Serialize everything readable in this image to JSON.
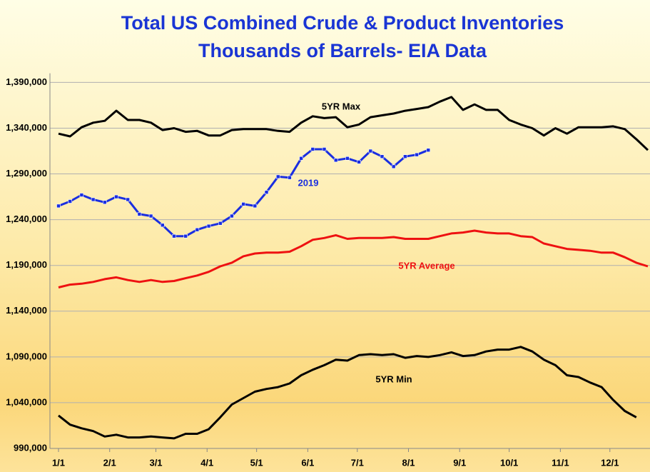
{
  "chart_data": {
    "type": "line",
    "title": [
      "Total US Combined Crude & Product Inventories",
      "Thousands of Barrels- EIA Data"
    ],
    "x": [
      1,
      8,
      15,
      22,
      29,
      36,
      43,
      50,
      57,
      64,
      71,
      78,
      85,
      92,
      99,
      106,
      113,
      120,
      127,
      134,
      141,
      148,
      155,
      162,
      169,
      176,
      183,
      190,
      197,
      204,
      211,
      218,
      225,
      232,
      239,
      246,
      253,
      260,
      267,
      274,
      281,
      288,
      295,
      302,
      309,
      316,
      323,
      330,
      337,
      344,
      351,
      358
    ],
    "xlim": [
      1,
      358
    ],
    "xticks": [
      {
        "value": 1,
        "label": "1/1"
      },
      {
        "value": 32,
        "label": "2/1"
      },
      {
        "value": 60,
        "label": "3/1"
      },
      {
        "value": 91,
        "label": "4/1"
      },
      {
        "value": 121,
        "label": "5/1"
      },
      {
        "value": 152,
        "label": "6/1"
      },
      {
        "value": 182,
        "label": "7/1"
      },
      {
        "value": 213,
        "label": "8/1"
      },
      {
        "value": 244,
        "label": "9/1"
      },
      {
        "value": 274,
        "label": "10/1"
      },
      {
        "value": 305,
        "label": "11/1"
      },
      {
        "value": 335,
        "label": "12/1"
      }
    ],
    "ylim": [
      990000,
      1400000
    ],
    "yticks": [
      {
        "value": 990000,
        "label": "990,000"
      },
      {
        "value": 1040000,
        "label": "1,040,000"
      },
      {
        "value": 1090000,
        "label": "1,090,000"
      },
      {
        "value": 1140000,
        "label": "1,140,000"
      },
      {
        "value": 1190000,
        "label": "1,190,000"
      },
      {
        "value": 1240000,
        "label": "1,240,000"
      },
      {
        "value": 1290000,
        "label": "1,290,000"
      },
      {
        "value": 1340000,
        "label": "1,340,000"
      },
      {
        "value": 1390000,
        "label": "1,390,000"
      }
    ],
    "grid": true,
    "series": [
      {
        "name": "5YR Max",
        "color": "#000000",
        "values": [
          1334000,
          1331000,
          1341000,
          1346000,
          1348000,
          1359000,
          1349000,
          1349000,
          1346000,
          1338000,
          1340000,
          1336000,
          1337000,
          1332000,
          1332000,
          1338000,
          1339000,
          1339000,
          1339000,
          1337000,
          1336000,
          1346000,
          1353000,
          1351000,
          1352000,
          1341000,
          1344000,
          1352000,
          1354000,
          1356000,
          1359000,
          1361000,
          1363000,
          1369000,
          1374000,
          1360000,
          1366000,
          1360000,
          1360000,
          1349000,
          1344000,
          1340000,
          1332000,
          1340000,
          1334000,
          1341000,
          1341000,
          1341000,
          1342000,
          1339000,
          1328000,
          1316000
        ]
      },
      {
        "name": "2019",
        "color": "#1a2ee0",
        "markers": true,
        "values": [
          1255000,
          1260000,
          1267000,
          1262000,
          1259000,
          1265000,
          1262000,
          1246000,
          1244000,
          1234000,
          1222000,
          1222000,
          1229000,
          1233000,
          1236000,
          1244000,
          1257000,
          1255000,
          1270000,
          1287000,
          1286000,
          1307000,
          1317000,
          1317000,
          1305000,
          1307000,
          1303000,
          1315000,
          1309000,
          1298000,
          1309000,
          1311000,
          1316000,
          null,
          null,
          null,
          null,
          null,
          null,
          null,
          null,
          null,
          null,
          null,
          null,
          null,
          null,
          null,
          null,
          null,
          null,
          null
        ]
      },
      {
        "name": "5YR Average",
        "color": "#ee1111",
        "values": [
          1166000,
          1169000,
          1170000,
          1172000,
          1175000,
          1177000,
          1174000,
          1172000,
          1174000,
          1172000,
          1173000,
          1176000,
          1179000,
          1183000,
          1189000,
          1193000,
          1200000,
          1203000,
          1204000,
          1204000,
          1205000,
          1211000,
          1218000,
          1220000,
          1223000,
          1219000,
          1220000,
          1220000,
          1220000,
          1221000,
          1219000,
          1219000,
          1219000,
          1222000,
          1225000,
          1226000,
          1228000,
          1226000,
          1225000,
          1225000,
          1222000,
          1221000,
          1214000,
          1211000,
          1208000,
          1207000,
          1206000,
          1204000,
          1204000,
          1199000,
          1193000,
          1189000
        ]
      },
      {
        "name": "5YR Min",
        "color": "#000000",
        "values": [
          1026000,
          1016000,
          1012000,
          1009000,
          1003000,
          1005000,
          1002000,
          1002000,
          1003000,
          1002000,
          1001000,
          1006000,
          1006000,
          1011000,
          1024000,
          1038000,
          1045000,
          1052000,
          1055000,
          1057000,
          1061000,
          1070000,
          1076000,
          1081000,
          1087000,
          1086000,
          1092000,
          1093000,
          1092000,
          1093000,
          1089000,
          1091000,
          1090000,
          1092000,
          1095000,
          1091000,
          1092000,
          1096000,
          1098000,
          1098000,
          1101000,
          1096000,
          1087000,
          1081000,
          1070000,
          1068000,
          1062000,
          1057000,
          1043000,
          1031000,
          1024000,
          null
        ]
      }
    ]
  }
}
